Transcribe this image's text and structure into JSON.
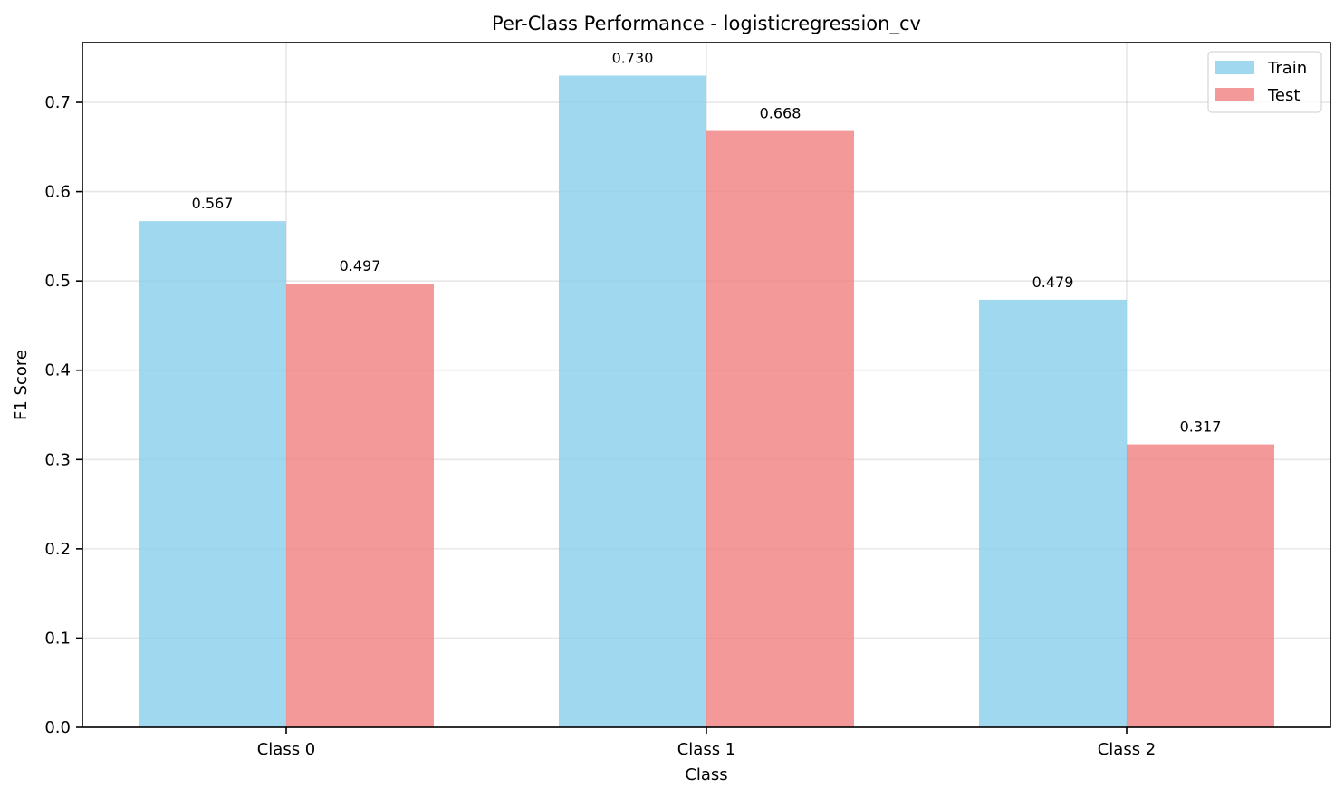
{
  "chart_data": {
    "type": "bar",
    "title": "Per-Class Performance - logisticregression_cv",
    "xlabel": "Class",
    "ylabel": "F1 Score",
    "categories": [
      "Class 0",
      "Class 1",
      "Class 2"
    ],
    "series": [
      {
        "name": "Train",
        "values": [
          0.567,
          0.73,
          0.479
        ],
        "labels": [
          "0.567",
          "0.730",
          "0.479"
        ],
        "color": "#87CEEB"
      },
      {
        "name": "Test",
        "values": [
          0.497,
          0.668,
          0.317
        ],
        "labels": [
          "0.497",
          "0.668",
          "0.317"
        ],
        "color": "#F08080"
      }
    ],
    "ylim": [
      0,
      0.767
    ],
    "yticks": [
      0.0,
      0.1,
      0.2,
      0.3,
      0.4,
      0.5,
      0.6,
      0.7
    ],
    "ytick_labels": [
      "0.0",
      "0.1",
      "0.2",
      "0.3",
      "0.4",
      "0.5",
      "0.6",
      "0.7"
    ],
    "grid": true,
    "legend_position": "top-right",
    "bar_opacity": 0.8
  }
}
